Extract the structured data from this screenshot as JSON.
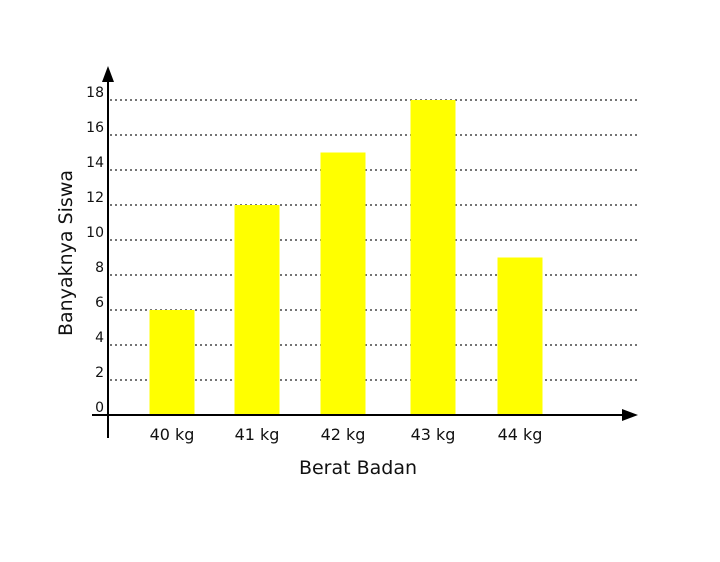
{
  "chart_data": {
    "type": "bar",
    "categories": [
      "40 kg",
      "41 kg",
      "42 kg",
      "43 kg",
      "44 kg"
    ],
    "values": [
      6,
      12,
      15,
      18,
      9
    ],
    "title": "",
    "xlabel": "Berat Badan",
    "ylabel": "Banyaknya Siswa",
    "ylim": [
      0,
      18
    ],
    "yticks": [
      0,
      2,
      4,
      6,
      8,
      10,
      12,
      14,
      16,
      18
    ],
    "grid": true,
    "bar_color": "#ffff00"
  }
}
